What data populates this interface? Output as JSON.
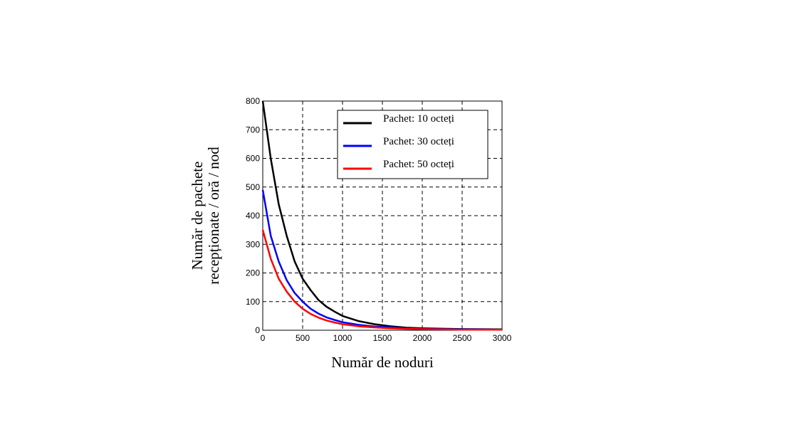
{
  "chart_data": {
    "type": "line",
    "title": "",
    "xlabel": "Număr de noduri",
    "ylabel_lines": [
      "Număr de pachete",
      "recepționate / oră / nod"
    ],
    "xlim": [
      0,
      3000
    ],
    "ylim": [
      0,
      800
    ],
    "xticks": [
      "0",
      "500",
      "1000",
      "1500",
      "2000",
      "2500",
      "3000"
    ],
    "yticks": [
      "0",
      "100",
      "200",
      "300",
      "400",
      "500",
      "600",
      "700",
      "800"
    ],
    "grid": true,
    "legend_position": "top-right",
    "x": [
      0,
      100,
      200,
      300,
      400,
      500,
      600,
      700,
      800,
      900,
      1000,
      1200,
      1400,
      1600,
      1800,
      2000,
      2500,
      3000
    ],
    "series": [
      {
        "name": "Pachet: 10 octeți",
        "color": "#000000",
        "values": [
          800,
          600,
          440,
          330,
          240,
          180,
          140,
          105,
          82,
          65,
          50,
          32,
          21,
          14,
          9,
          7,
          4,
          3
        ]
      },
      {
        "name": "Pachet: 30 octeți",
        "color": "#0000ff",
        "values": [
          490,
          330,
          240,
          175,
          130,
          100,
          75,
          58,
          45,
          36,
          28,
          19,
          13,
          10,
          7,
          5,
          3,
          2
        ]
      },
      {
        "name": "Pachet: 50 octeți",
        "color": "#ff0000",
        "values": [
          350,
          250,
          180,
          135,
          100,
          75,
          57,
          44,
          34,
          27,
          21,
          14,
          10,
          7,
          5,
          4,
          2,
          2
        ]
      }
    ]
  }
}
